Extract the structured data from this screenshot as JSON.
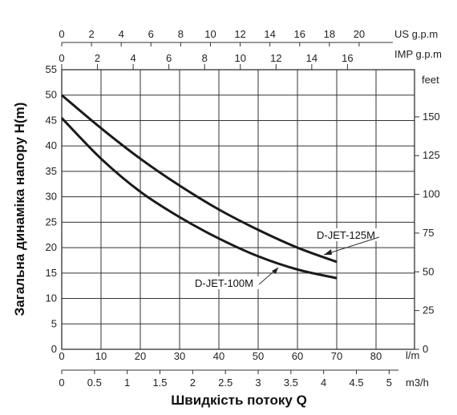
{
  "chart_data": {
    "type": "line",
    "y_title": "Загальна динаміка напору H(m)",
    "x_title": "Швидкість потоку Q",
    "units": {
      "us_gpm": "US g.p.m",
      "imp_gpm": "IMP g.p.m",
      "feet": "feet",
      "lpm": "l/m",
      "m3h": "m3/h"
    },
    "y_ticks": [
      "0",
      "5",
      "10",
      "15",
      "20",
      "25",
      "30",
      "35",
      "40",
      "45",
      "50",
      "55"
    ],
    "feet_ticks": [
      "0",
      "25",
      "50",
      "75",
      "100",
      "125",
      "150"
    ],
    "lpm_ticks": [
      "0",
      "10",
      "20",
      "30",
      "40",
      "50",
      "60",
      "70",
      "80"
    ],
    "us_gpm_ticks": [
      "0",
      "2",
      "4",
      "6",
      "8",
      "10",
      "12",
      "14",
      "16",
      "18",
      "20"
    ],
    "imp_gpm_ticks": [
      "0",
      "2",
      "4",
      "6",
      "8",
      "10",
      "12",
      "14",
      "16"
    ],
    "m3h_ticks": [
      "0",
      "0.5",
      "1",
      "1.5",
      "2",
      "2.5",
      "3",
      "3.5",
      "4",
      "4.5",
      "5"
    ],
    "xlim_lpm": [
      0,
      90
    ],
    "ylim_m": [
      0,
      55
    ],
    "grid": true,
    "series": [
      {
        "name": "D-JET-125M",
        "x": [
          0,
          10,
          20,
          30,
          40,
          50,
          60,
          70
        ],
        "y": [
          50,
          43.5,
          37.5,
          32.2,
          27.5,
          23.5,
          20.0,
          17.2
        ]
      },
      {
        "name": "D-JET-100M",
        "x": [
          0,
          10,
          20,
          30,
          40,
          50,
          60,
          70
        ],
        "y": [
          45.5,
          37.5,
          31.0,
          26.0,
          21.8,
          18.3,
          15.7,
          14.0
        ]
      }
    ]
  }
}
